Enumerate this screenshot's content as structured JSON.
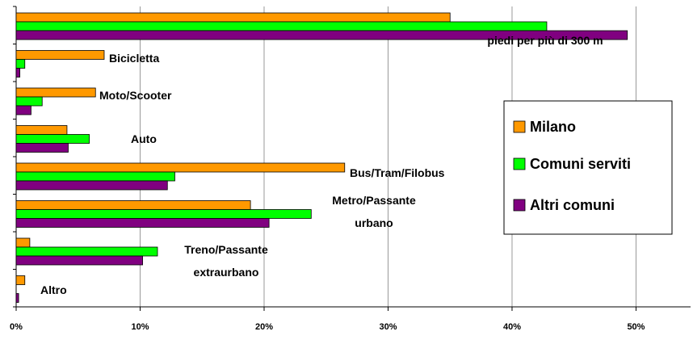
{
  "chart_data": {
    "type": "barh",
    "categories": [
      "piedi per più di 300 m",
      "Bicicletta",
      "Moto/Scooter",
      "Auto",
      "Bus/Tram/Filobus",
      "Metro/Passante urbano",
      "Treno/Passante extraurbano",
      "Altro"
    ],
    "series": [
      {
        "name": "Milano",
        "color": "#ff9900",
        "values": [
          35.0,
          7.1,
          6.4,
          4.1,
          26.5,
          18.9,
          1.1,
          0.7
        ]
      },
      {
        "name": "Comuni serviti",
        "color": "#00ff00",
        "values": [
          42.8,
          0.7,
          2.1,
          5.9,
          12.8,
          23.8,
          11.4,
          0
        ]
      },
      {
        "name": "Altri comuni",
        "color": "#800080",
        "values": [
          49.3,
          0.3,
          1.2,
          4.2,
          12.2,
          20.4,
          10.2,
          0.2
        ]
      }
    ],
    "xlim": [
      0,
      54.4
    ],
    "xticks": [
      {
        "value": 0,
        "label": "0%"
      },
      {
        "value": 10,
        "label": "10%"
      },
      {
        "value": 20,
        "label": "20%"
      },
      {
        "value": 30,
        "label": "30%"
      },
      {
        "value": 40,
        "label": "40%"
      },
      {
        "value": 50,
        "label": "50%"
      }
    ],
    "grid": true,
    "legend": "right"
  }
}
